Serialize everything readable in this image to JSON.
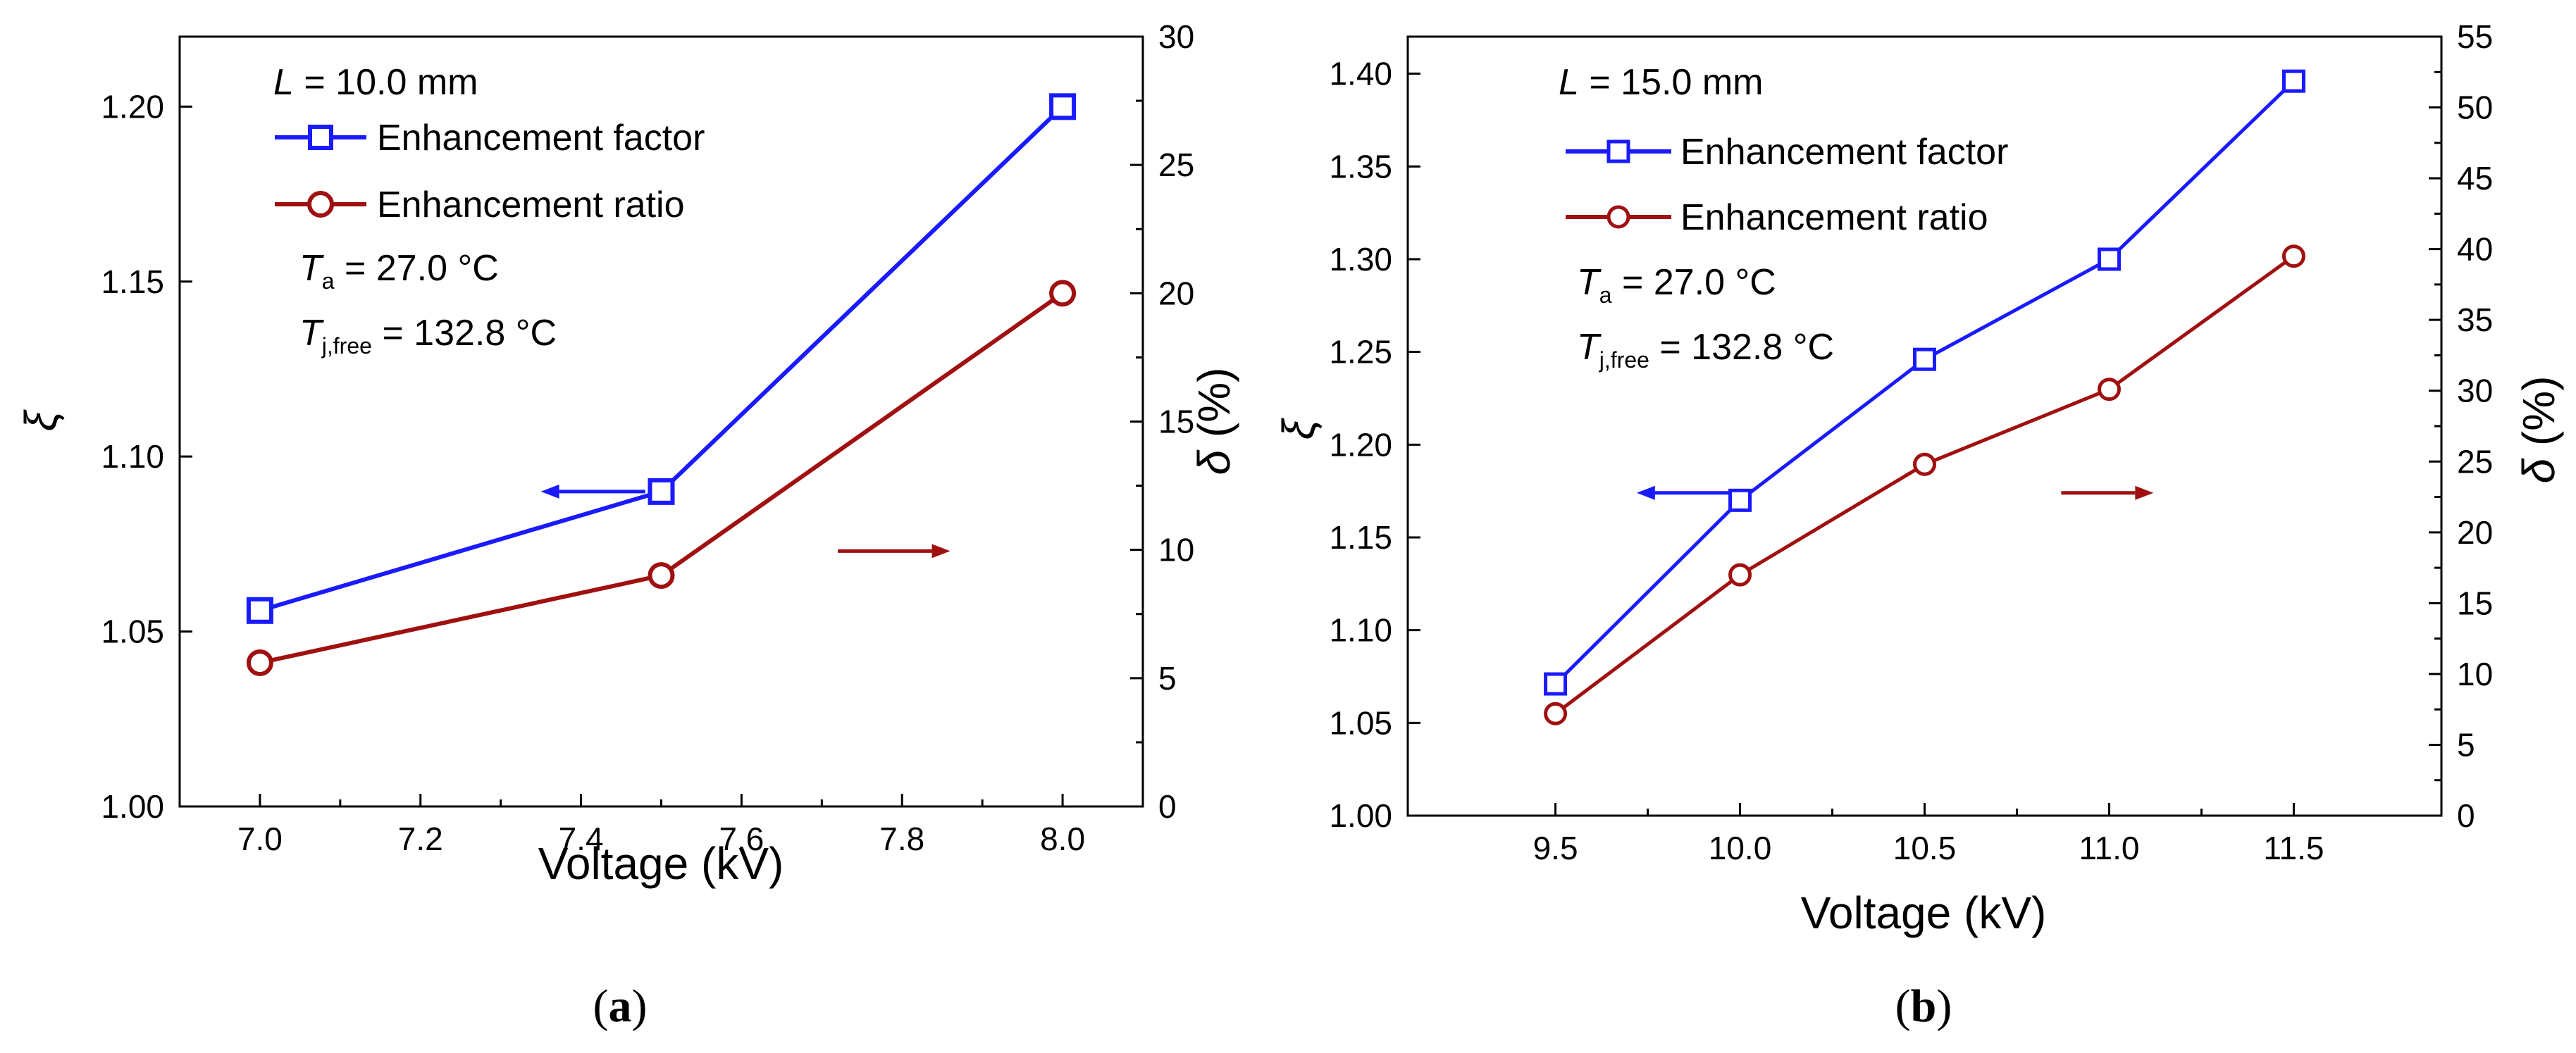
{
  "figure": {
    "panels": [
      {
        "caption_open": "(",
        "caption_letter": "a",
        "caption_close": ")",
        "ann": {
          "L_symbol": "L",
          "L_text": " = 10.0 mm",
          "Ta_symbol": "T",
          "Ta_sub": "a",
          "Ta_text": " = 27.0 °C",
          "Tj_symbol": "T",
          "Tj_sub": "j,free",
          "Tj_text": " = 132.8 °C"
        }
      },
      {
        "caption_open": "(",
        "caption_letter": "b",
        "caption_close": ")",
        "ann": {
          "L_symbol": "L",
          "L_text": " = 15.0 mm",
          "Ta_symbol": "T",
          "Ta_sub": "a",
          "Ta_text": " = 27.0 °C",
          "Tj_symbol": "T",
          "Tj_sub": "j,free",
          "Tj_text": " = 132.8 °C"
        }
      }
    ]
  },
  "colors": {
    "factor": "#1a1aff",
    "ratio": "#a01010",
    "axis": "#000000"
  },
  "chart_data": [
    {
      "type": "line",
      "panel": "a",
      "title": "",
      "xlabel": "Voltage (kV)",
      "ylabel": "ξ",
      "y2label_symbol": "δ",
      "y2label_unit": " (%)",
      "xlim": [
        6.9,
        8.1
      ],
      "xticks": [
        7.0,
        7.2,
        7.4,
        7.6,
        7.8,
        8.0
      ],
      "xtick_labels": [
        "7.0",
        "7.2",
        "7.4",
        "7.6",
        "7.8",
        "8.0"
      ],
      "ylim": [
        1.0,
        1.22
      ],
      "yticks": [
        1.0,
        1.05,
        1.1,
        1.15,
        1.2
      ],
      "ytick_labels": [
        "1.00",
        "1.05",
        "1.10",
        "1.15",
        "1.20"
      ],
      "y2lim": [
        0,
        30
      ],
      "y2ticks": [
        0,
        5,
        10,
        15,
        20,
        25,
        30
      ],
      "y2tick_labels": [
        "0",
        "5",
        "10",
        "15",
        "20",
        "25",
        "30"
      ],
      "legend_location": "top-left",
      "series": [
        {
          "name": "Enhancement factor",
          "axis": "left",
          "marker": "square",
          "x": [
            7.0,
            7.5,
            8.0
          ],
          "values": [
            1.056,
            1.09,
            1.2
          ]
        },
        {
          "name": "Enhancement ratio",
          "axis": "right",
          "marker": "circle",
          "x": [
            7.0,
            7.5,
            8.0
          ],
          "values": [
            5.6,
            9.0,
            20.0
          ]
        }
      ],
      "arrows": [
        {
          "direction": "left",
          "series": "Enhancement factor",
          "x_from": 7.48,
          "x_to": 7.35,
          "y": 1.09
        },
        {
          "direction": "right",
          "series": "Enhancement ratio",
          "x_from": 7.72,
          "x_to": 7.86,
          "y": 1.073
        }
      ]
    },
    {
      "type": "line",
      "panel": "b",
      "title": "",
      "xlabel": "Voltage (kV)",
      "ylabel": "ξ",
      "y2label_symbol": "δ",
      "y2label_unit": " (%)",
      "xlim": [
        9.1,
        11.9
      ],
      "xticks": [
        9.5,
        10.0,
        10.5,
        11.0,
        11.5
      ],
      "xtick_labels": [
        "9.5",
        "10.0",
        "10.5",
        "11.0",
        "11.5"
      ],
      "ylim": [
        1.0,
        1.42
      ],
      "yticks": [
        1.0,
        1.05,
        1.1,
        1.15,
        1.2,
        1.25,
        1.3,
        1.35,
        1.4
      ],
      "ytick_labels": [
        "1.00",
        "1.05",
        "1.10",
        "1.15",
        "1.20",
        "1.25",
        "1.30",
        "1.35",
        "1.40"
      ],
      "y2lim": [
        0,
        55
      ],
      "y2ticks": [
        0,
        5,
        10,
        15,
        20,
        25,
        30,
        35,
        40,
        45,
        50,
        55
      ],
      "y2tick_labels": [
        "0",
        "5",
        "10",
        "15",
        "20",
        "25",
        "30",
        "35",
        "40",
        "45",
        "50",
        "55"
      ],
      "legend_location": "top-left",
      "series": [
        {
          "name": "Enhancement factor",
          "axis": "left",
          "marker": "square",
          "x": [
            9.5,
            10.0,
            10.5,
            11.0,
            11.5
          ],
          "values": [
            1.071,
            1.17,
            1.246,
            1.3,
            1.396
          ]
        },
        {
          "name": "Enhancement ratio",
          "axis": "right",
          "marker": "circle",
          "x": [
            9.5,
            10.0,
            10.5,
            11.0,
            11.5
          ],
          "values": [
            7.2,
            17.0,
            24.8,
            30.1,
            39.5
          ]
        }
      ],
      "arrows": [
        {
          "direction": "left",
          "series": "Enhancement factor",
          "x_from": 9.97,
          "x_to": 9.72,
          "y": 1.174
        },
        {
          "direction": "right",
          "series": "Enhancement ratio",
          "x_from": 10.87,
          "x_to": 11.12,
          "y": 1.174
        }
      ]
    }
  ]
}
